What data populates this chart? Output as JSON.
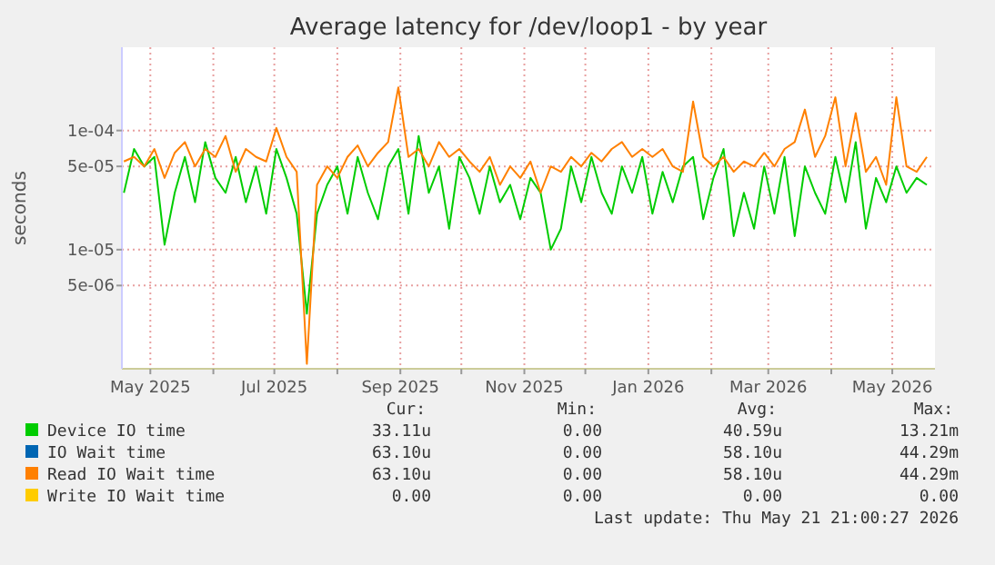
{
  "chart_data": {
    "type": "line",
    "title": "Average latency for /dev/loop1 - by year",
    "ylabel": "seconds",
    "log": true,
    "grid": true,
    "legend": "bottom",
    "line_style": "solid",
    "marker": "none",
    "xlim": [
      "2025-04-17",
      "2026-05-22"
    ],
    "xticks": [
      {
        "value": "2025-05-01",
        "label": "May 2025"
      },
      {
        "value": "2025-06-01",
        "label": null
      },
      {
        "value": "2025-07-01",
        "label": "Jul 2025"
      },
      {
        "value": "2025-08-01",
        "label": null
      },
      {
        "value": "2025-09-01",
        "label": "Sep 2025"
      },
      {
        "value": "2025-10-01",
        "label": null
      },
      {
        "value": "2025-11-01",
        "label": "Nov 2025"
      },
      {
        "value": "2025-12-01",
        "label": null
      },
      {
        "value": "2026-01-01",
        "label": "Jan 2026"
      },
      {
        "value": "2026-02-01",
        "label": null
      },
      {
        "value": "2026-03-01",
        "label": "Mar 2026"
      },
      {
        "value": "2026-04-01",
        "label": null
      },
      {
        "value": "2026-05-01",
        "label": "May 2026"
      }
    ],
    "ylim": [
      1e-06,
      0.0005
    ],
    "yticks": [
      {
        "value": 5e-06,
        "label": "5e-06"
      },
      {
        "value": 1e-05,
        "label": "1e-05"
      },
      {
        "value": 5e-05,
        "label": "5e-05"
      },
      {
        "value": 0.0001,
        "label": "1e-04"
      }
    ],
    "x": [
      "2025-04-18",
      "2025-04-23",
      "2025-04-28",
      "2025-05-03",
      "2025-05-08",
      "2025-05-13",
      "2025-05-18",
      "2025-05-23",
      "2025-05-28",
      "2025-06-02",
      "2025-06-07",
      "2025-06-12",
      "2025-06-17",
      "2025-06-22",
      "2025-06-27",
      "2025-07-02",
      "2025-07-07",
      "2025-07-12",
      "2025-07-17",
      "2025-07-22",
      "2025-07-27",
      "2025-08-01",
      "2025-08-06",
      "2025-08-11",
      "2025-08-16",
      "2025-08-21",
      "2025-08-26",
      "2025-08-31",
      "2025-09-05",
      "2025-09-10",
      "2025-09-15",
      "2025-09-20",
      "2025-09-25",
      "2025-09-30",
      "2025-10-05",
      "2025-10-10",
      "2025-10-15",
      "2025-10-20",
      "2025-10-25",
      "2025-10-30",
      "2025-11-04",
      "2025-11-09",
      "2025-11-14",
      "2025-11-19",
      "2025-11-24",
      "2025-11-29",
      "2025-12-04",
      "2025-12-09",
      "2025-12-14",
      "2025-12-19",
      "2025-12-24",
      "2025-12-29",
      "2026-01-03",
      "2026-01-08",
      "2026-01-13",
      "2026-01-18",
      "2026-01-23",
      "2026-01-28",
      "2026-02-02",
      "2026-02-07",
      "2026-02-12",
      "2026-02-17",
      "2026-02-22",
      "2026-02-27",
      "2026-03-04",
      "2026-03-09",
      "2026-03-14",
      "2026-03-19",
      "2026-03-24",
      "2026-03-29",
      "2026-04-03",
      "2026-04-08",
      "2026-04-13",
      "2026-04-18",
      "2026-04-23",
      "2026-04-28",
      "2026-05-03",
      "2026-05-08",
      "2026-05-13",
      "2026-05-18"
    ],
    "series": [
      {
        "name": "Device IO time",
        "color": "#00cc00",
        "values": [
          3e-05,
          7e-05,
          5e-05,
          6e-05,
          1.1e-05,
          3e-05,
          6e-05,
          2.5e-05,
          8e-05,
          4e-05,
          3e-05,
          6e-05,
          2.5e-05,
          5e-05,
          2e-05,
          7e-05,
          4e-05,
          2e-05,
          2.9e-06,
          2e-05,
          3.5e-05,
          5e-05,
          2e-05,
          6e-05,
          3e-05,
          1.8e-05,
          5e-05,
          7e-05,
          2e-05,
          9e-05,
          3e-05,
          5e-05,
          1.5e-05,
          6e-05,
          4e-05,
          2e-05,
          5e-05,
          2.5e-05,
          3.5e-05,
          1.8e-05,
          4e-05,
          3e-05,
          1e-05,
          1.5e-05,
          5e-05,
          2.5e-05,
          6e-05,
          3e-05,
          2e-05,
          5e-05,
          3e-05,
          6e-05,
          2e-05,
          4.5e-05,
          2.5e-05,
          5e-05,
          6e-05,
          1.8e-05,
          4e-05,
          7e-05,
          1.3e-05,
          3e-05,
          1.5e-05,
          5e-05,
          2e-05,
          6e-05,
          1.3e-05,
          5e-05,
          3e-05,
          2e-05,
          6e-05,
          2.5e-05,
          8e-05,
          1.5e-05,
          4e-05,
          2.5e-05,
          5e-05,
          3e-05,
          4e-05,
          3.5e-05
        ]
      },
      {
        "name": "IO Wait time",
        "color": "#0066b3",
        "values": [
          null,
          null,
          null,
          null,
          null,
          null,
          null,
          null,
          null,
          null,
          null,
          null,
          null,
          null,
          null,
          null,
          null,
          null,
          null,
          null,
          null,
          null,
          null,
          null,
          null,
          null,
          null,
          null,
          null,
          null,
          null,
          null,
          null,
          null,
          null,
          null,
          null,
          null,
          null,
          null,
          null,
          null,
          null,
          null,
          null,
          null,
          null,
          null,
          null,
          null,
          null,
          null,
          null,
          null,
          null,
          null,
          null,
          null,
          null,
          null,
          null,
          null,
          null,
          null,
          null,
          null,
          null,
          null,
          null,
          null,
          null,
          null,
          null,
          null,
          null,
          null,
          null,
          null,
          null,
          null
        ]
      },
      {
        "name": "Read IO Wait time",
        "color": "#ff8000",
        "values": [
          5.5e-05,
          6e-05,
          5e-05,
          7e-05,
          4e-05,
          6.5e-05,
          8e-05,
          5e-05,
          7e-05,
          6e-05,
          9e-05,
          4.5e-05,
          7e-05,
          6e-05,
          5.5e-05,
          0.000105,
          6e-05,
          4.5e-05,
          1.1e-06,
          3.5e-05,
          5e-05,
          4e-05,
          6e-05,
          7.5e-05,
          5e-05,
          6.5e-05,
          8e-05,
          0.00023,
          6e-05,
          7e-05,
          5e-05,
          8e-05,
          6e-05,
          7e-05,
          5.5e-05,
          4.5e-05,
          6e-05,
          3.5e-05,
          5e-05,
          4e-05,
          5.5e-05,
          3e-05,
          5e-05,
          4.5e-05,
          6e-05,
          5e-05,
          6.5e-05,
          5.5e-05,
          7e-05,
          8e-05,
          6e-05,
          7e-05,
          6e-05,
          7e-05,
          5e-05,
          4.5e-05,
          0.000175,
          6e-05,
          5e-05,
          6e-05,
          4.5e-05,
          5.5e-05,
          5e-05,
          6.5e-05,
          5e-05,
          7e-05,
          8e-05,
          0.00015,
          6e-05,
          9e-05,
          0.00019,
          5e-05,
          0.00014,
          4.5e-05,
          6e-05,
          3.5e-05,
          0.00019,
          5e-05,
          4.5e-05,
          6e-05
        ]
      },
      {
        "name": "Write IO Wait time",
        "color": "#ffcc00",
        "values": [
          null,
          null,
          null,
          null,
          null,
          null,
          null,
          null,
          null,
          null,
          null,
          null,
          null,
          null,
          null,
          null,
          null,
          null,
          null,
          null,
          null,
          null,
          null,
          null,
          null,
          null,
          null,
          null,
          null,
          null,
          null,
          null,
          null,
          null,
          null,
          null,
          null,
          null,
          null,
          null,
          null,
          null,
          null,
          null,
          null,
          null,
          null,
          null,
          null,
          null,
          null,
          null,
          null,
          null,
          null,
          null,
          null,
          null,
          null,
          null,
          null,
          null,
          null,
          null,
          null,
          null,
          null,
          null,
          null,
          null,
          null,
          null,
          null,
          null,
          null,
          null,
          null,
          null,
          null,
          null
        ]
      }
    ],
    "annotations": [
      "Cur:",
      "Min:",
      "Avg:",
      "Max:",
      "33.11u",
      "0.00",
      "40.59u",
      "13.21m",
      "63.10u",
      "0.00",
      "58.10u",
      "44.29m",
      "63.10u",
      "0.00",
      "58.10u",
      "44.29m",
      "0.00",
      "0.00",
      "0.00",
      "0.00",
      "Last update: Thu May 21 21:00:27 2026"
    ]
  }
}
